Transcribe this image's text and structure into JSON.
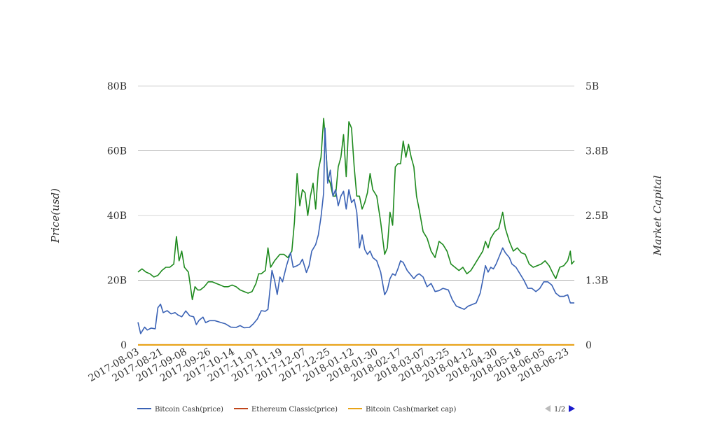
{
  "chart_data": {
    "type": "line",
    "title": "",
    "y_left": {
      "label": "Price(usd)",
      "range": [
        0,
        80
      ],
      "ticks": [
        "0",
        "20B",
        "40B",
        "60B",
        "80B"
      ]
    },
    "y_right": {
      "label": "Market Capital",
      "range": [
        0,
        5
      ],
      "ticks": [
        "0",
        "1.3B",
        "2.5B",
        "3.8B",
        "5B"
      ]
    },
    "x_ticks": [
      "2017-08-03",
      "2017-08-21",
      "2017-09-08",
      "2017-09-26",
      "2017-10-14",
      "2017-11-01",
      "2017-11-19",
      "2017-12-07",
      "2017-12-25",
      "2018-01-12",
      "2018-01-30",
      "2018-02-17",
      "2018-03-07",
      "2018-03-25",
      "2018-04-12",
      "2018-04-30",
      "2018-05-18",
      "2018-06-05",
      "2018-06-23"
    ],
    "grid": true,
    "legend_position": "bottom-left",
    "legend": {
      "items": [
        "Bitcoin Cash(price)",
        "Ethereum Classic(price)",
        "Bitcoin Cash(market cap)"
      ],
      "page": "1/2"
    },
    "series": [
      {
        "name": "Bitcoin Cash(price)",
        "color": "#3a62b5",
        "axis": "left",
        "points": [
          [
            "2017-08-03",
            7
          ],
          [
            "2017-08-05",
            3.5
          ],
          [
            "2017-08-08",
            5.5
          ],
          [
            "2017-08-10",
            4.6
          ],
          [
            "2017-08-13",
            5.2
          ],
          [
            "2017-08-16",
            5
          ],
          [
            "2017-08-18",
            11.5
          ],
          [
            "2017-08-20",
            12.6
          ],
          [
            "2017-08-22",
            10
          ],
          [
            "2017-08-25",
            10.6
          ],
          [
            "2017-08-28",
            9.6
          ],
          [
            "2017-08-31",
            10
          ],
          [
            "2017-09-02",
            9.3
          ],
          [
            "2017-09-05",
            8.7
          ],
          [
            "2017-09-08",
            10.5
          ],
          [
            "2017-09-11",
            9
          ],
          [
            "2017-09-14",
            8.7
          ],
          [
            "2017-09-16",
            6.3
          ],
          [
            "2017-09-18",
            7.6
          ],
          [
            "2017-09-21",
            8.6
          ],
          [
            "2017-09-23",
            6.9
          ],
          [
            "2017-09-26",
            7.5
          ],
          [
            "2017-09-30",
            7.5
          ],
          [
            "2017-10-04",
            7
          ],
          [
            "2017-10-08",
            6.5
          ],
          [
            "2017-10-12",
            5.5
          ],
          [
            "2017-10-16",
            5.4
          ],
          [
            "2017-10-19",
            6
          ],
          [
            "2017-10-22",
            5.3
          ],
          [
            "2017-10-26",
            5.4
          ],
          [
            "2017-10-29",
            6.5
          ],
          [
            "2017-11-01",
            8
          ],
          [
            "2017-11-04",
            10.6
          ],
          [
            "2017-11-07",
            10.4
          ],
          [
            "2017-11-09",
            11
          ],
          [
            "2017-11-12",
            23
          ],
          [
            "2017-11-14",
            20
          ],
          [
            "2017-11-16",
            15.6
          ],
          [
            "2017-11-18",
            21
          ],
          [
            "2017-11-20",
            19.5
          ],
          [
            "2017-11-23",
            24.5
          ],
          [
            "2017-11-26",
            28.5
          ],
          [
            "2017-11-28",
            24
          ],
          [
            "2017-12-01",
            24.5
          ],
          [
            "2017-12-03",
            25
          ],
          [
            "2017-12-05",
            26.5
          ],
          [
            "2017-12-08",
            22.4
          ],
          [
            "2017-12-10",
            24.5
          ],
          [
            "2017-12-12",
            29
          ],
          [
            "2017-12-15",
            31
          ],
          [
            "2017-12-17",
            34
          ],
          [
            "2017-12-19",
            39.5
          ],
          [
            "2017-12-21",
            47
          ],
          [
            "2017-12-22",
            67
          ],
          [
            "2017-12-24",
            50
          ],
          [
            "2017-12-26",
            54
          ],
          [
            "2017-12-28",
            46
          ],
          [
            "2017-12-30",
            48
          ],
          [
            "2018-01-01",
            43
          ],
          [
            "2018-01-03",
            46
          ],
          [
            "2018-01-05",
            47.5
          ],
          [
            "2018-01-07",
            42
          ],
          [
            "2018-01-09",
            48
          ],
          [
            "2018-01-11",
            44
          ],
          [
            "2018-01-13",
            45
          ],
          [
            "2018-01-15",
            41
          ],
          [
            "2018-01-17",
            30
          ],
          [
            "2018-01-19",
            34
          ],
          [
            "2018-01-21",
            29.5
          ],
          [
            "2018-01-23",
            28
          ],
          [
            "2018-01-25",
            29
          ],
          [
            "2018-01-27",
            27
          ],
          [
            "2018-01-30",
            26
          ],
          [
            "2018-02-02",
            22.5
          ],
          [
            "2018-02-05",
            15.5
          ],
          [
            "2018-02-07",
            17
          ],
          [
            "2018-02-09",
            20.5
          ],
          [
            "2018-02-11",
            22
          ],
          [
            "2018-02-13",
            21.5
          ],
          [
            "2018-02-15",
            23.5
          ],
          [
            "2018-02-17",
            26
          ],
          [
            "2018-02-19",
            25.5
          ],
          [
            "2018-02-22",
            23
          ],
          [
            "2018-02-24",
            22
          ],
          [
            "2018-02-27",
            20.5
          ],
          [
            "2018-03-01",
            21.5
          ],
          [
            "2018-03-03",
            22
          ],
          [
            "2018-03-06",
            21
          ],
          [
            "2018-03-09",
            18
          ],
          [
            "2018-03-12",
            19
          ],
          [
            "2018-03-15",
            16.5
          ],
          [
            "2018-03-18",
            16.8
          ],
          [
            "2018-03-21",
            17.5
          ],
          [
            "2018-03-25",
            17
          ],
          [
            "2018-03-28",
            14
          ],
          [
            "2018-03-31",
            12
          ],
          [
            "2018-04-03",
            11.5
          ],
          [
            "2018-04-06",
            11
          ],
          [
            "2018-04-09",
            12
          ],
          [
            "2018-04-12",
            12.5
          ],
          [
            "2018-04-15",
            13
          ],
          [
            "2018-04-18",
            16
          ],
          [
            "2018-04-20",
            20
          ],
          [
            "2018-04-22",
            24.5
          ],
          [
            "2018-04-24",
            22.5
          ],
          [
            "2018-04-26",
            24
          ],
          [
            "2018-04-28",
            23.5
          ],
          [
            "2018-04-30",
            25
          ],
          [
            "2018-05-03",
            28
          ],
          [
            "2018-05-05",
            30
          ],
          [
            "2018-05-07",
            28.5
          ],
          [
            "2018-05-10",
            27
          ],
          [
            "2018-05-12",
            25
          ],
          [
            "2018-05-15",
            24
          ],
          [
            "2018-05-18",
            22
          ],
          [
            "2018-05-21",
            20
          ],
          [
            "2018-05-24",
            17.5
          ],
          [
            "2018-05-27",
            17.5
          ],
          [
            "2018-05-30",
            16.5
          ],
          [
            "2018-06-02",
            17.5
          ],
          [
            "2018-06-05",
            19.5
          ],
          [
            "2018-06-08",
            19.5
          ],
          [
            "2018-06-11",
            18.5
          ],
          [
            "2018-06-14",
            16
          ],
          [
            "2018-06-17",
            15
          ],
          [
            "2018-06-20",
            15
          ],
          [
            "2018-06-23",
            15.5
          ],
          [
            "2018-06-25",
            13
          ],
          [
            "2018-06-28",
            13
          ]
        ]
      },
      {
        "name": "Ethereum Classic(price)",
        "color": "#c0461b",
        "axis": "left",
        "points": [
          [
            "2017-08-03",
            0.02
          ],
          [
            "2018-06-28",
            0.02
          ]
        ]
      },
      {
        "name": "Bitcoin Cash(market cap)",
        "color": "#e8a317",
        "axis": "right",
        "points": [
          [
            "2017-08-03",
            0
          ],
          [
            "2018-06-28",
            0
          ]
        ]
      },
      {
        "name": "",
        "color": "#1e8a1e",
        "axis": "left",
        "points": [
          [
            "2017-08-03",
            22.5
          ],
          [
            "2017-08-06",
            23.5
          ],
          [
            "2017-08-09",
            22.5
          ],
          [
            "2017-08-12",
            22
          ],
          [
            "2017-08-15",
            21
          ],
          [
            "2017-08-18",
            21.5
          ],
          [
            "2017-08-21",
            23
          ],
          [
            "2017-08-24",
            24
          ],
          [
            "2017-08-27",
            24
          ],
          [
            "2017-08-30",
            25
          ],
          [
            "2017-09-01",
            33.5
          ],
          [
            "2017-09-03",
            26
          ],
          [
            "2017-09-05",
            29
          ],
          [
            "2017-09-07",
            24
          ],
          [
            "2017-09-10",
            22.5
          ],
          [
            "2017-09-13",
            14
          ],
          [
            "2017-09-15",
            18
          ],
          [
            "2017-09-17",
            17
          ],
          [
            "2017-09-19",
            17
          ],
          [
            "2017-09-22",
            18
          ],
          [
            "2017-09-25",
            19.5
          ],
          [
            "2017-09-28",
            19.5
          ],
          [
            "2017-10-01",
            19
          ],
          [
            "2017-10-04",
            18.5
          ],
          [
            "2017-10-07",
            18
          ],
          [
            "2017-10-10",
            18
          ],
          [
            "2017-10-13",
            18.5
          ],
          [
            "2017-10-16",
            18
          ],
          [
            "2017-10-19",
            17
          ],
          [
            "2017-10-22",
            16.5
          ],
          [
            "2017-10-25",
            16
          ],
          [
            "2017-10-28",
            16.5
          ],
          [
            "2017-10-31",
            19
          ],
          [
            "2017-11-02",
            22
          ],
          [
            "2017-11-04",
            22
          ],
          [
            "2017-11-07",
            23
          ],
          [
            "2017-11-09",
            30
          ],
          [
            "2017-11-11",
            24
          ],
          [
            "2017-11-14",
            26
          ],
          [
            "2017-11-16",
            27
          ],
          [
            "2017-11-18",
            28
          ],
          [
            "2017-11-21",
            28
          ],
          [
            "2017-11-24",
            27
          ],
          [
            "2017-11-27",
            29
          ],
          [
            "2017-11-29",
            38
          ],
          [
            "2017-12-01",
            53
          ],
          [
            "2017-12-03",
            43
          ],
          [
            "2017-12-05",
            48
          ],
          [
            "2017-12-07",
            47
          ],
          [
            "2017-12-09",
            40
          ],
          [
            "2017-12-11",
            46
          ],
          [
            "2017-12-13",
            50
          ],
          [
            "2017-12-15",
            42
          ],
          [
            "2017-12-17",
            54
          ],
          [
            "2017-12-19",
            58
          ],
          [
            "2017-12-21",
            70
          ],
          [
            "2017-12-22",
            65
          ],
          [
            "2017-12-24",
            52
          ],
          [
            "2017-12-26",
            50
          ],
          [
            "2017-12-28",
            46
          ],
          [
            "2017-12-30",
            46
          ],
          [
            "2018-01-01",
            55
          ],
          [
            "2018-01-03",
            58
          ],
          [
            "2018-01-05",
            65
          ],
          [
            "2018-01-07",
            52
          ],
          [
            "2018-01-09",
            69
          ],
          [
            "2018-01-11",
            67
          ],
          [
            "2018-01-13",
            55
          ],
          [
            "2018-01-15",
            46
          ],
          [
            "2018-01-17",
            46
          ],
          [
            "2018-01-19",
            42
          ],
          [
            "2018-01-21",
            44
          ],
          [
            "2018-01-23",
            47
          ],
          [
            "2018-01-25",
            53
          ],
          [
            "2018-01-27",
            48
          ],
          [
            "2018-01-30",
            46
          ],
          [
            "2018-02-02",
            38
          ],
          [
            "2018-02-05",
            28
          ],
          [
            "2018-02-07",
            30
          ],
          [
            "2018-02-09",
            41
          ],
          [
            "2018-02-11",
            37
          ],
          [
            "2018-02-13",
            55
          ],
          [
            "2018-02-15",
            56
          ],
          [
            "2018-02-17",
            56
          ],
          [
            "2018-02-19",
            63
          ],
          [
            "2018-02-21",
            58
          ],
          [
            "2018-02-23",
            62
          ],
          [
            "2018-02-25",
            58
          ],
          [
            "2018-02-27",
            55
          ],
          [
            "2018-03-01",
            46
          ],
          [
            "2018-03-03",
            42
          ],
          [
            "2018-03-06",
            35
          ],
          [
            "2018-03-09",
            33
          ],
          [
            "2018-03-12",
            29
          ],
          [
            "2018-03-15",
            27
          ],
          [
            "2018-03-18",
            32
          ],
          [
            "2018-03-21",
            31
          ],
          [
            "2018-03-24",
            29
          ],
          [
            "2018-03-27",
            25
          ],
          [
            "2018-03-30",
            24
          ],
          [
            "2018-04-02",
            23
          ],
          [
            "2018-04-05",
            24
          ],
          [
            "2018-04-08",
            22
          ],
          [
            "2018-04-11",
            23
          ],
          [
            "2018-04-14",
            25
          ],
          [
            "2018-04-17",
            27
          ],
          [
            "2018-04-20",
            29
          ],
          [
            "2018-04-22",
            32
          ],
          [
            "2018-04-24",
            30
          ],
          [
            "2018-04-26",
            33
          ],
          [
            "2018-04-29",
            35
          ],
          [
            "2018-05-02",
            36
          ],
          [
            "2018-05-05",
            41
          ],
          [
            "2018-05-07",
            36
          ],
          [
            "2018-05-10",
            32
          ],
          [
            "2018-05-13",
            29
          ],
          [
            "2018-05-16",
            30
          ],
          [
            "2018-05-19",
            28.5
          ],
          [
            "2018-05-22",
            28
          ],
          [
            "2018-05-25",
            25
          ],
          [
            "2018-05-28",
            24
          ],
          [
            "2018-05-31",
            24.5
          ],
          [
            "2018-06-03",
            25
          ],
          [
            "2018-06-06",
            26
          ],
          [
            "2018-06-09",
            24.5
          ],
          [
            "2018-06-12",
            22
          ],
          [
            "2018-06-14",
            20.5
          ],
          [
            "2018-06-17",
            24
          ],
          [
            "2018-06-20",
            24.5
          ],
          [
            "2018-06-23",
            26
          ],
          [
            "2018-06-25",
            29
          ],
          [
            "2018-06-26",
            25
          ],
          [
            "2018-06-28",
            26
          ]
        ]
      }
    ]
  }
}
